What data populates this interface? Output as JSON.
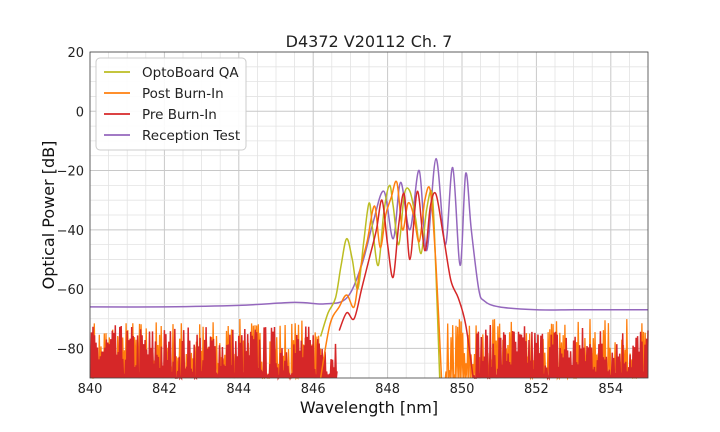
{
  "chart_data": {
    "type": "line",
    "title": "D4372 V20112 Ch. 7",
    "xlabel": "Wavelength [nm]",
    "ylabel": "Optical Power [dB]",
    "xlim": [
      840,
      855
    ],
    "ylim": [
      -90,
      20
    ],
    "xticks": [
      "840",
      "842",
      "844",
      "846",
      "848",
      "850",
      "852",
      "854"
    ],
    "yticks": [
      "20",
      "0",
      "−20",
      "−40",
      "−60",
      "−80"
    ],
    "grid": true,
    "legend_position": "top-left",
    "noise_floor": [
      -90,
      -70
    ],
    "series": [
      {
        "name": "OptoBoard QA",
        "color": "#bcbd22",
        "x": [
          846.2,
          846.4,
          846.6,
          846.75,
          846.9,
          847.05,
          847.2,
          847.35,
          847.5,
          847.6,
          847.75,
          847.9,
          848.05,
          848.15,
          848.3,
          848.45,
          848.6,
          848.75,
          848.9,
          849.05,
          849.2,
          849.3,
          849.4
        ],
        "y": [
          -76,
          -68,
          -63,
          -52,
          -43,
          -50,
          -60,
          -45,
          -31,
          -40,
          -52,
          -34,
          -25,
          -32,
          -45,
          -28,
          -27,
          -36,
          -48,
          -33,
          -28,
          -55,
          -90
        ]
      },
      {
        "name": "Post Burn-In",
        "color": "#ff7f0e",
        "x": [
          846.2,
          846.45,
          846.7,
          846.9,
          847.1,
          847.25,
          847.45,
          847.65,
          847.8,
          847.95,
          848.1,
          848.25,
          848.4,
          848.55,
          848.7,
          848.85,
          849.0,
          849.15,
          849.3,
          849.45
        ],
        "y": [
          -90,
          -72,
          -66,
          -62,
          -66,
          -54,
          -44,
          -32,
          -46,
          -35,
          -29,
          -24,
          -40,
          -31,
          -35,
          -44,
          -30,
          -27,
          -52,
          -90
        ]
      },
      {
        "name": "Pre Burn-In",
        "color": "#d62728",
        "x": [
          846.7,
          846.9,
          847.1,
          847.3,
          847.5,
          847.7,
          847.85,
          848.0,
          848.15,
          848.3,
          848.45,
          848.6,
          848.8,
          849.0,
          849.15,
          849.3,
          849.5,
          849.7,
          849.9,
          850.1,
          850.3
        ],
        "y": [
          -74,
          -68,
          -70,
          -60,
          -50,
          -40,
          -30,
          -45,
          -56,
          -38,
          -28,
          -50,
          -27,
          -47,
          -32,
          -28,
          -42,
          -57,
          -63,
          -72,
          -90
        ]
      },
      {
        "name": "Reception Test",
        "color": "#9467bd",
        "x": [
          840,
          842,
          844,
          845.5,
          846.3,
          846.9,
          847.3,
          847.6,
          847.9,
          848.15,
          848.35,
          848.6,
          848.85,
          849.05,
          849.3,
          849.55,
          849.75,
          849.95,
          850.1,
          850.25,
          850.45,
          850.6,
          851.0,
          852,
          853,
          854,
          855
        ],
        "y": [
          -66,
          -66,
          -65.5,
          -64.5,
          -65,
          -63,
          -52,
          -38,
          -27,
          -43,
          -24,
          -40,
          -20,
          -47,
          -16,
          -45,
          -19,
          -52,
          -21,
          -40,
          -60,
          -64,
          -66,
          -67,
          -67,
          -67,
          -67
        ]
      }
    ]
  }
}
